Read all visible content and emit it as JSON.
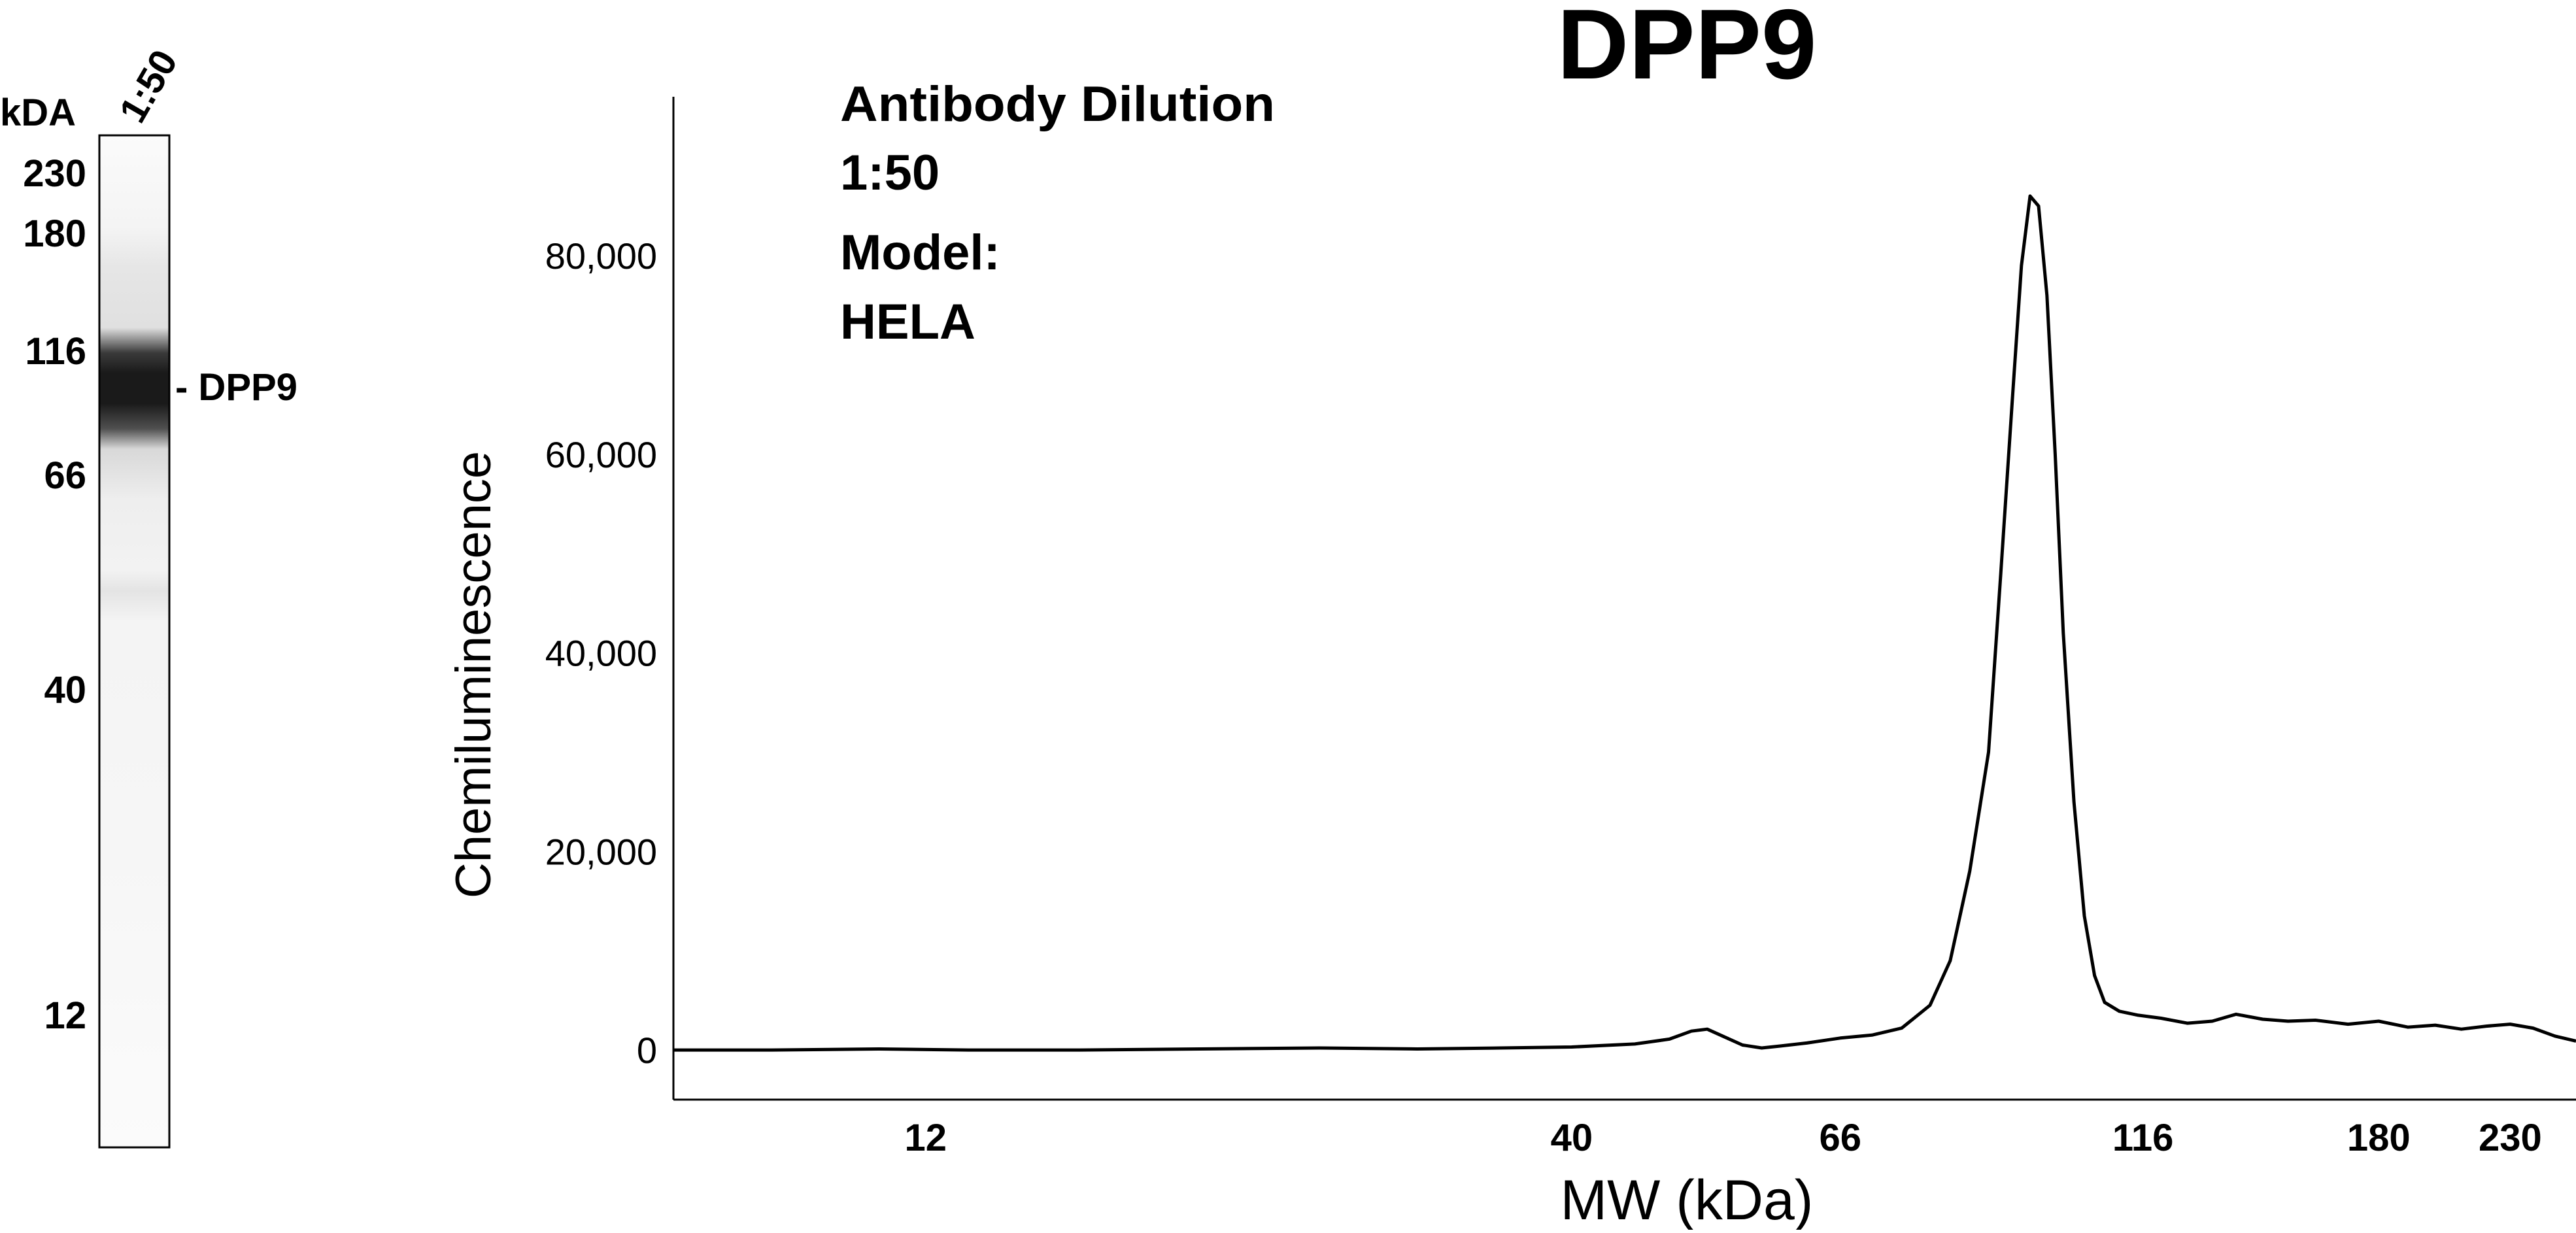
{
  "colors": {
    "ink": "#000000",
    "background": "#ffffff",
    "band": "#1a1a1a"
  },
  "lane": {
    "unit_label": "kDA",
    "lane_label": "1:50",
    "marker_labels": [
      "230",
      "180",
      "116",
      "66",
      "40",
      "12"
    ],
    "band_label": "- DPP9"
  },
  "chart_data": {
    "type": "line",
    "title": "DPP9",
    "xlabel": "MW (kDa)",
    "ylabel": "Chemiluminescence",
    "x_scale": "log",
    "xlim": [
      7.5,
      260
    ],
    "ylim": [
      -5000,
      96000
    ],
    "x_ticks": [
      12,
      40,
      66,
      116,
      180,
      230
    ],
    "x_tick_labels": [
      "12",
      "40",
      "66",
      "116",
      "180",
      "230"
    ],
    "y_ticks": [
      0,
      20000,
      40000,
      60000,
      80000
    ],
    "y_tick_labels": [
      "0",
      "20,000",
      "40,000",
      "60,000",
      "80,000"
    ],
    "grid": false,
    "annotations": [
      "Antibody Dilution",
      "1:50",
      "Model:",
      "HELA"
    ],
    "series": [
      {
        "x": [
          7.5,
          9,
          11,
          13,
          16,
          20,
          25,
          30,
          35,
          40,
          45,
          48,
          50,
          51.5,
          53,
          55,
          57,
          59,
          62,
          66,
          70,
          74,
          78,
          81,
          84,
          87,
          89,
          91,
          92.5,
          94,
          95.5,
          97,
          98.5,
          100,
          102,
          104,
          106,
          108,
          111,
          115,
          120,
          126,
          132,
          138,
          145,
          152,
          160,
          170,
          180,
          190,
          200,
          210,
          220,
          230,
          240,
          250,
          260
        ],
        "y": [
          0,
          0,
          100,
          0,
          0,
          100,
          200,
          100,
          200,
          300,
          600,
          1100,
          1900,
          2100,
          1400,
          500,
          200,
          400,
          700,
          1200,
          1500,
          2200,
          4500,
          9000,
          18000,
          30000,
          48000,
          66000,
          79000,
          86000,
          85000,
          76000,
          60000,
          42000,
          25000,
          13500,
          7500,
          4800,
          3900,
          3500,
          3200,
          2700,
          2900,
          3600,
          3100,
          2900,
          3000,
          2600,
          2900,
          2300,
          2500,
          2100,
          2400,
          2600,
          2200,
          1400,
          900
        ]
      }
    ]
  }
}
